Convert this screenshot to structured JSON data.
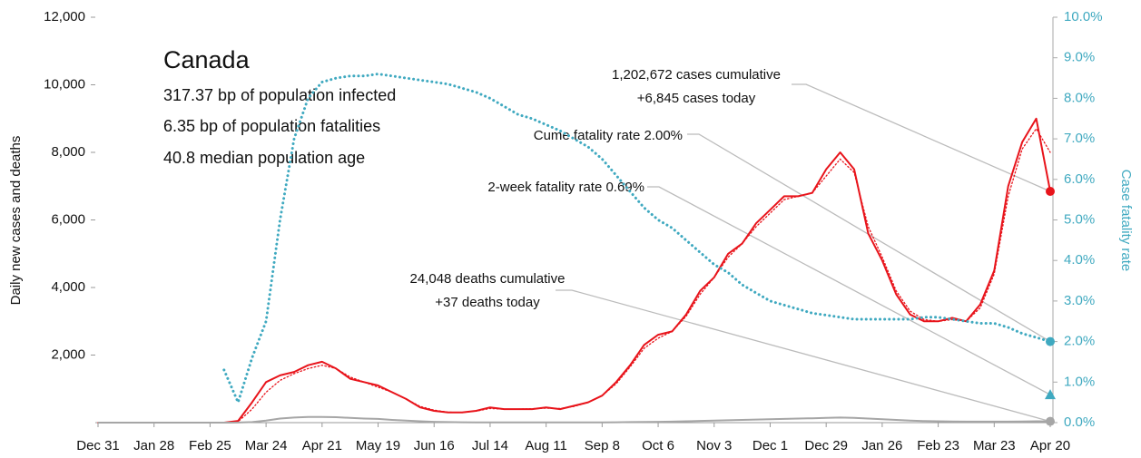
{
  "chart_data": {
    "type": "line",
    "info": {
      "title": "Canada",
      "lines": [
        "317.37 bp of population infected",
        "6.35 bp of population fatalities",
        "40.8 median population age"
      ]
    },
    "ylabel": "Daily new cases and deaths",
    "y2label": "Case fatality rate",
    "xlim": [
      0,
      476
    ],
    "xticks": [
      {
        "value": 0,
        "label": "Dec 31"
      },
      {
        "value": 28,
        "label": "Jan 28"
      },
      {
        "value": 56,
        "label": "Feb 25"
      },
      {
        "value": 84,
        "label": "Mar 24"
      },
      {
        "value": 112,
        "label": "Apr 21"
      },
      {
        "value": 140,
        "label": "May 19"
      },
      {
        "value": 168,
        "label": "Jun 16"
      },
      {
        "value": 196,
        "label": "Jul 14"
      },
      {
        "value": 224,
        "label": "Aug 11"
      },
      {
        "value": 252,
        "label": "Sep 8"
      },
      {
        "value": 280,
        "label": "Oct 6"
      },
      {
        "value": 308,
        "label": "Nov 3"
      },
      {
        "value": 336,
        "label": "Dec 1"
      },
      {
        "value": 364,
        "label": "Dec 29"
      },
      {
        "value": 392,
        "label": "Jan 26"
      },
      {
        "value": 420,
        "label": "Feb 23"
      },
      {
        "value": 448,
        "label": "Mar 23"
      },
      {
        "value": 476,
        "label": "Apr 20"
      }
    ],
    "ylim": [
      0,
      12000
    ],
    "yticks": [
      {
        "value": 2000,
        "label": "2,000"
      },
      {
        "value": 4000,
        "label": "4,000"
      },
      {
        "value": 6000,
        "label": "6,000"
      },
      {
        "value": 8000,
        "label": "8,000"
      },
      {
        "value": 10000,
        "label": "10,000"
      },
      {
        "value": 12000,
        "label": "12,000"
      }
    ],
    "y2lim": [
      0,
      10
    ],
    "y2ticks": [
      {
        "value": 0,
        "label": "0.0%"
      },
      {
        "value": 1,
        "label": "1.0%"
      },
      {
        "value": 2,
        "label": "2.0%"
      },
      {
        "value": 3,
        "label": "3.0%"
      },
      {
        "value": 4,
        "label": "4.0%"
      },
      {
        "value": 5,
        "label": "5.0%"
      },
      {
        "value": 6,
        "label": "6.0%"
      },
      {
        "value": 7,
        "label": "7.0%"
      },
      {
        "value": 8,
        "label": "8.0%"
      },
      {
        "value": 9,
        "label": "9.0%"
      },
      {
        "value": 10,
        "label": "10.0%"
      }
    ],
    "x": [
      0,
      7,
      14,
      21,
      28,
      35,
      42,
      49,
      56,
      63,
      70,
      77,
      84,
      91,
      98,
      105,
      112,
      119,
      126,
      133,
      140,
      147,
      154,
      161,
      168,
      175,
      182,
      189,
      196,
      203,
      210,
      217,
      224,
      231,
      238,
      245,
      252,
      259,
      266,
      273,
      280,
      287,
      294,
      301,
      308,
      315,
      322,
      329,
      336,
      343,
      350,
      357,
      364,
      371,
      378,
      385,
      392,
      399,
      406,
      413,
      420,
      427,
      434,
      441,
      448,
      455,
      462,
      469,
      476
    ],
    "series": [
      {
        "color": "#e8141b",
        "style": "solid",
        "endpoint": true,
        "values": [
          0,
          0,
          0,
          0,
          0,
          0,
          0,
          0,
          0,
          0,
          50,
          600,
          1200,
          1400,
          1500,
          1700,
          1800,
          1600,
          1300,
          1200,
          1100,
          900,
          700,
          450,
          350,
          300,
          300,
          350,
          450,
          400,
          400,
          400,
          450,
          400,
          500,
          600,
          800,
          1200,
          1700,
          2300,
          2600,
          2700,
          3200,
          3900,
          4300,
          5000,
          5300,
          5900,
          6300,
          6700,
          6700,
          6800,
          7500,
          8000,
          7500,
          5600,
          4800,
          3800,
          3200,
          3000,
          3000,
          3100,
          3000,
          3500,
          4500,
          7000,
          8300,
          9000,
          6845
        ]
      },
      {
        "color": "#e8141b",
        "style": "dotted",
        "values": [
          0,
          0,
          0,
          0,
          0,
          0,
          0,
          0,
          0,
          0,
          30,
          400,
          900,
          1250,
          1450,
          1600,
          1700,
          1600,
          1350,
          1200,
          1050,
          900,
          700,
          480,
          370,
          310,
          300,
          340,
          420,
          400,
          400,
          410,
          430,
          420,
          480,
          600,
          800,
          1150,
          1650,
          2200,
          2500,
          2700,
          3150,
          3800,
          4300,
          4900,
          5300,
          5800,
          6200,
          6600,
          6700,
          6800,
          7300,
          7800,
          7400,
          5800,
          4900,
          3900,
          3300,
          3050,
          3000,
          3050,
          3000,
          3400,
          4400,
          6700,
          8100,
          8700,
          8000
        ]
      },
      {
        "color": "#a6a6a6",
        "style": "solid",
        "endpoint": true,
        "values": [
          0,
          0,
          0,
          0,
          0,
          0,
          0,
          0,
          0,
          0,
          2,
          15,
          60,
          120,
          150,
          170,
          170,
          160,
          140,
          120,
          110,
          80,
          60,
          40,
          25,
          15,
          10,
          8,
          6,
          5,
          5,
          5,
          5,
          5,
          5,
          6,
          7,
          10,
          15,
          20,
          25,
          30,
          40,
          50,
          60,
          70,
          80,
          90,
          100,
          110,
          120,
          130,
          140,
          150,
          140,
          120,
          100,
          80,
          60,
          45,
          40,
          35,
          30,
          30,
          30,
          30,
          35,
          40,
          37
        ]
      },
      {
        "color": "#3fa9c0",
        "style": "dotted",
        "axis": "y2",
        "endpoint": true,
        "values": [
          null,
          null,
          null,
          null,
          null,
          null,
          null,
          null,
          null,
          1.3,
          0.5,
          1.6,
          2.5,
          5.0,
          7.0,
          8.0,
          8.4,
          8.5,
          8.55,
          8.55,
          8.6,
          8.55,
          8.5,
          8.45,
          8.4,
          8.35,
          8.25,
          8.15,
          8.0,
          7.8,
          7.6,
          7.5,
          7.35,
          7.2,
          7.0,
          6.8,
          6.5,
          6.1,
          5.7,
          5.3,
          5.0,
          4.8,
          4.5,
          4.2,
          3.9,
          3.7,
          3.4,
          3.2,
          3.0,
          2.9,
          2.8,
          2.7,
          2.65,
          2.6,
          2.55,
          2.55,
          2.55,
          2.55,
          2.55,
          2.6,
          2.6,
          2.55,
          2.5,
          2.45,
          2.45,
          2.35,
          2.2,
          2.1,
          2.0
        ]
      }
    ],
    "two_week_rate": {
      "value": 0.69,
      "axis": "y2",
      "color": "#3fa9c0"
    },
    "annotations": [
      {
        "lines": [
          "1,202,672 cases cumulative",
          "+6,845 cases today"
        ]
      },
      {
        "lines": [
          "Cume fatality rate 2.00%"
        ]
      },
      {
        "lines": [
          "2-week fatality rate 0.69%"
        ]
      },
      {
        "lines": [
          "24,048 deaths cumulative",
          "+37 deaths today"
        ]
      }
    ]
  }
}
